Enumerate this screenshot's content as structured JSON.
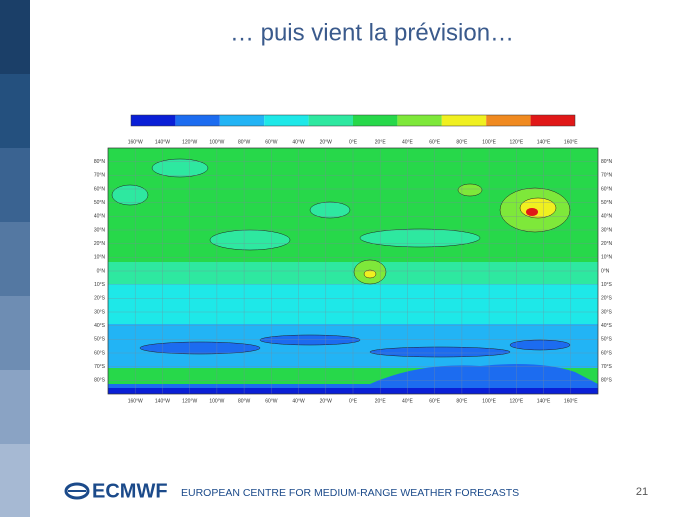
{
  "slide": {
    "title": "… puis vient la prévision…",
    "map": {
      "longitude_labels": [
        "160°W",
        "140°W",
        "120°W",
        "100°W",
        "80°W",
        "60°W",
        "40°W",
        "20°W",
        "0°E",
        "20°E",
        "40°E",
        "60°E",
        "80°E",
        "100°E",
        "120°E",
        "140°E",
        "160°E"
      ],
      "latitude_labels": [
        "80°N",
        "70°N",
        "60°N",
        "50°N",
        "40°N",
        "30°N",
        "20°N",
        "10°N",
        "0°N",
        "10°S",
        "20°S",
        "30°S",
        "40°S",
        "50°S",
        "60°S",
        "70°S",
        "80°S"
      ]
    },
    "footer": {
      "logo": "ECMWF",
      "organization": "EUROPEAN CENTRE FOR MEDIUM-RANGE WEATHER FORECASTS",
      "page_number": "21"
    }
  }
}
